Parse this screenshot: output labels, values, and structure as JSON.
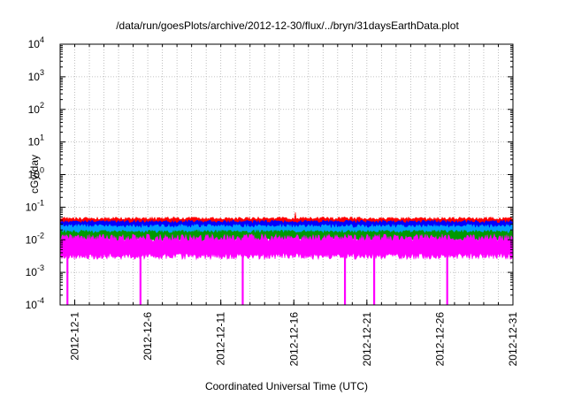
{
  "chart_data": {
    "type": "line",
    "title": "/data/run/goesPlots/archive/2012-12-30/flux/../bryn/31daysEarthData.plot",
    "xlabel": "Coordinated Universal Time (UTC)",
    "ylabel": "cGy/day",
    "y_scale": "log",
    "ylim": [
      0.0001,
      10000
    ],
    "xlim": [
      "2012-11-30",
      "2012-12-31"
    ],
    "grid": true,
    "x_ticks": [
      "2012-12-1",
      "2012-12-6",
      "2012-12-11",
      "2012-12-16",
      "2012-12-21",
      "2012-12-26",
      "2012-12-31"
    ],
    "y_ticks": [
      {
        "base": "10",
        "exp": "4"
      },
      {
        "base": "10",
        "exp": "3"
      },
      {
        "base": "10",
        "exp": "2"
      },
      {
        "base": "10",
        "exp": "1"
      },
      {
        "base": "10",
        "exp": "0"
      },
      {
        "base": "10",
        "exp": "-1"
      },
      {
        "base": "10",
        "exp": "-2"
      },
      {
        "base": "10",
        "exp": "-3"
      },
      {
        "base": "10",
        "exp": "-4"
      }
    ],
    "series": [
      {
        "color": "#ff0000",
        "typical_range": [
          0.025,
          0.05
        ],
        "peak": 0.07
      },
      {
        "color": "#0000ff",
        "typical_range": [
          0.02,
          0.04
        ]
      },
      {
        "color": "#00a0ff",
        "typical_range": [
          0.012,
          0.03
        ]
      },
      {
        "color": "#009900",
        "typical_range": [
          0.009,
          0.02
        ]
      },
      {
        "color": "#ff00ff",
        "typical_range": [
          0.0025,
          0.015
        ],
        "dropouts": [
          "2012-11-30",
          "2012-12-5",
          "2012-12-12",
          "2012-12-19",
          "2012-12-21",
          "2012-12-26"
        ]
      }
    ]
  }
}
